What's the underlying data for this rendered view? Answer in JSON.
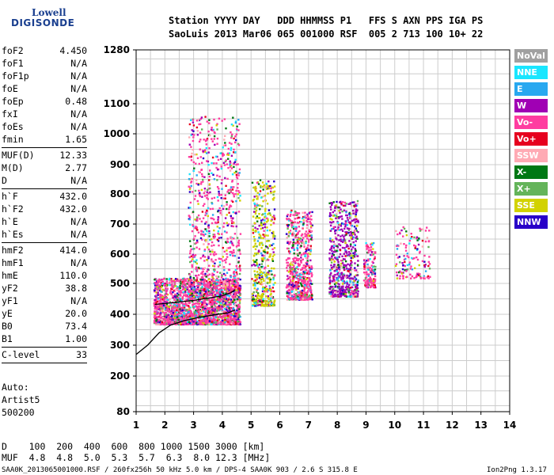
{
  "logo": {
    "line1": "Lowell",
    "line2": "DIGISONDE"
  },
  "header": {
    "row1": "Station YYYY DAY   DDD HHMMSS P1   FFS S AXN PPS IGA PS",
    "row2": "SaoLuis 2013 Mar06 065 001000 RSF  005 2 713 100 10+ 22"
  },
  "params": {
    "group1": [
      {
        "name": "foF2",
        "value": "4.450"
      },
      {
        "name": "foF1",
        "value": "N/A"
      },
      {
        "name": "foF1p",
        "value": "N/A"
      },
      {
        "name": "foE",
        "value": "N/A"
      },
      {
        "name": "foEp",
        "value": "0.48"
      },
      {
        "name": "fxI",
        "value": "N/A"
      },
      {
        "name": "foEs",
        "value": "N/A"
      },
      {
        "name": "fmin",
        "value": "1.65"
      }
    ],
    "group2": [
      {
        "name": "MUF(D)",
        "value": "12.33"
      },
      {
        "name": "M(D)",
        "value": "2.77"
      },
      {
        "name": "D",
        "value": "N/A"
      }
    ],
    "group3": [
      {
        "name": "h`F",
        "value": "432.0"
      },
      {
        "name": "h`F2",
        "value": "432.0"
      },
      {
        "name": "h`E",
        "value": "N/A"
      },
      {
        "name": "h`Es",
        "value": "N/A"
      }
    ],
    "group4": [
      {
        "name": "hmF2",
        "value": "414.0"
      },
      {
        "name": "hmF1",
        "value": "N/A"
      },
      {
        "name": "hmE",
        "value": "110.0"
      },
      {
        "name": "yF2",
        "value": "38.8"
      },
      {
        "name": "yF1",
        "value": "N/A"
      },
      {
        "name": "yE",
        "value": "20.0"
      },
      {
        "name": "B0",
        "value": "73.4"
      },
      {
        "name": "B1",
        "value": "1.00"
      }
    ],
    "group5": [
      {
        "name": "C-level",
        "value": "33"
      }
    ]
  },
  "auto": [
    "Auto:",
    "Artist5",
    "500200"
  ],
  "legend": [
    {
      "label": "NoVal",
      "color": "#a0a0a0"
    },
    {
      "label": "NNE",
      "color": "#19e6ff"
    },
    {
      "label": "E",
      "color": "#28a8f0"
    },
    {
      "label": "W",
      "color": "#a000b4"
    },
    {
      "label": "Vo-",
      "color": "#ff3ca0"
    },
    {
      "label": "Vo+",
      "color": "#e6001e"
    },
    {
      "label": "SSW",
      "color": "#ffaab4"
    },
    {
      "label": "X-",
      "color": "#007814"
    },
    {
      "label": "X+",
      "color": "#64b45a"
    },
    {
      "label": "SSE",
      "color": "#d2d200"
    },
    {
      "label": "NNW",
      "color": "#2800c8"
    }
  ],
  "chart_data": {
    "type": "scatter",
    "title": "",
    "xlabel": "",
    "ylabel": "",
    "xlim": [
      1,
      14
    ],
    "ylim_ticks": [
      80,
      200,
      300,
      400,
      500,
      600,
      700,
      800,
      900,
      1000,
      1100,
      1280
    ],
    "x_ticks": [
      1,
      2,
      3,
      4,
      5,
      6,
      7,
      8,
      9,
      10,
      11,
      12,
      13,
      14
    ],
    "grid": true,
    "legend_placement": "right",
    "echo_clusters": [
      {
        "x_range": [
          1.6,
          4.6
        ],
        "h_range": [
          370,
          520
        ],
        "dominant": "Vo-"
      },
      {
        "x_range": [
          2.8,
          4.6
        ],
        "h_range": [
          450,
          1060
        ],
        "dominant": "Vo-"
      },
      {
        "x_range": [
          5.0,
          5.8
        ],
        "h_range": [
          430,
          850
        ],
        "dominant": "SSE"
      },
      {
        "x_range": [
          6.2,
          7.1
        ],
        "h_range": [
          450,
          750
        ],
        "dominant": "Vo-"
      },
      {
        "x_range": [
          7.7,
          8.7
        ],
        "h_range": [
          460,
          780
        ],
        "dominant": "W"
      },
      {
        "x_range": [
          8.9,
          9.3
        ],
        "h_range": [
          490,
          640
        ],
        "dominant": "Vo-"
      },
      {
        "x_range": [
          10.0,
          11.2
        ],
        "h_range": [
          520,
          700
        ],
        "dominant": "Vo-"
      }
    ],
    "trace_F2": {
      "x": [
        1.65,
        2.0,
        2.5,
        3.0,
        3.5,
        4.0,
        4.3,
        4.45
      ],
      "h": [
        432,
        435,
        440,
        445,
        452,
        460,
        470,
        480
      ]
    },
    "profile": {
      "x": [
        1.0,
        1.4,
        1.8,
        2.2,
        2.7,
        3.2,
        3.7,
        4.2,
        4.45
      ],
      "h": [
        270,
        300,
        340,
        365,
        380,
        390,
        398,
        405,
        414
      ]
    }
  },
  "footer": {
    "d_row": "D    100  200  400  600  800 1000 1500 3000 [km]",
    "muf_row": "MUF  4.8  4.8  5.0  5.3  5.7  6.3  8.0 12.3 [MHz]",
    "info": "SAA0K_2013065001000.RSF / 260fx256h 50 kHz 5.0 km / DPS-4 SAA0K 903 / 2.6 S 315.8 E",
    "version": "Ion2Png 1.3.17"
  }
}
